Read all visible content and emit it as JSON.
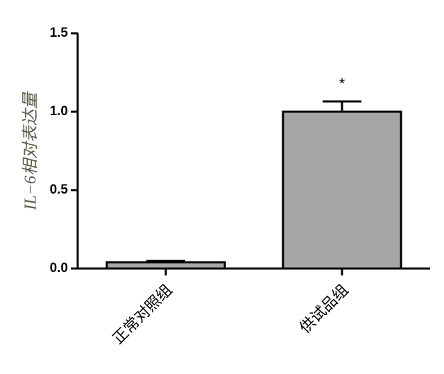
{
  "chart_data": {
    "type": "bar",
    "ylabel": "IL−6相对表达量",
    "categories": [
      "正常对照组",
      "供试品组"
    ],
    "values": [
      0.04,
      1.0
    ],
    "errors": [
      0.008,
      0.066
    ],
    "significance": [
      null,
      "*"
    ],
    "color": "#a6a6a9",
    "ylim": [
      0,
      1.5
    ],
    "yticks": [
      {
        "value": 0,
        "label": "0.0"
      },
      {
        "value": 0.5,
        "label": "0.5"
      },
      {
        "value": 1,
        "label": "1.0"
      },
      {
        "value": 1.5,
        "label": "1.5"
      }
    ],
    "grid": false
  }
}
